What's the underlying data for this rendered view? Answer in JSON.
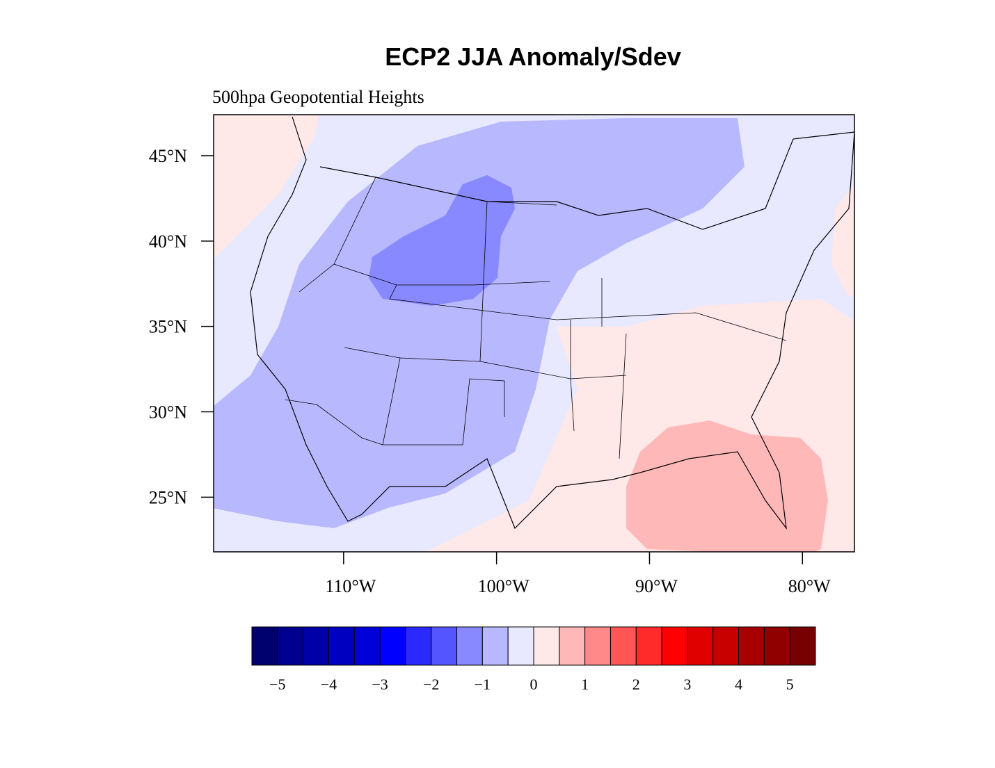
{
  "title": "ECP2 JJA Anomaly/Sdev",
  "subtitle": "500hpa Geopotential Heights",
  "map": {
    "xlim": [
      -118.5,
      -76.6
    ],
    "ylim": [
      21.8,
      47.4
    ],
    "yticks": [
      {
        "value": 45,
        "label": "45°N"
      },
      {
        "value": 40,
        "label": "40°N"
      },
      {
        "value": 35,
        "label": "35°N"
      },
      {
        "value": 30,
        "label": "30°N"
      },
      {
        "value": 25,
        "label": "25°N"
      }
    ],
    "xticks": [
      {
        "value": -110,
        "label": "110°W"
      },
      {
        "value": -100,
        "label": "100°W"
      },
      {
        "value": -90,
        "label": "90°W"
      },
      {
        "value": -80,
        "label": "80°W"
      }
    ]
  },
  "colorbar": {
    "range": [
      -5.5,
      5.5
    ],
    "colors": [
      "#00006e",
      "#000090",
      "#0000a8",
      "#0000c0",
      "#0000d8",
      "#0000ff",
      "#2a2aff",
      "#5555ff",
      "#8888ff",
      "#b8b8ff",
      "#e8e8ff",
      "#ffe8e8",
      "#ffb8b8",
      "#ff8888",
      "#ff5555",
      "#ff2a2a",
      "#ff0000",
      "#e00000",
      "#c80000",
      "#a80000",
      "#900000",
      "#780000"
    ],
    "ticks": [
      {
        "value": -5,
        "label": "−5"
      },
      {
        "value": -4,
        "label": "−4"
      },
      {
        "value": -3,
        "label": "−3"
      },
      {
        "value": -2,
        "label": "−2"
      },
      {
        "value": -1,
        "label": "−1"
      },
      0,
      1,
      2,
      3,
      4,
      5
    ]
  }
}
